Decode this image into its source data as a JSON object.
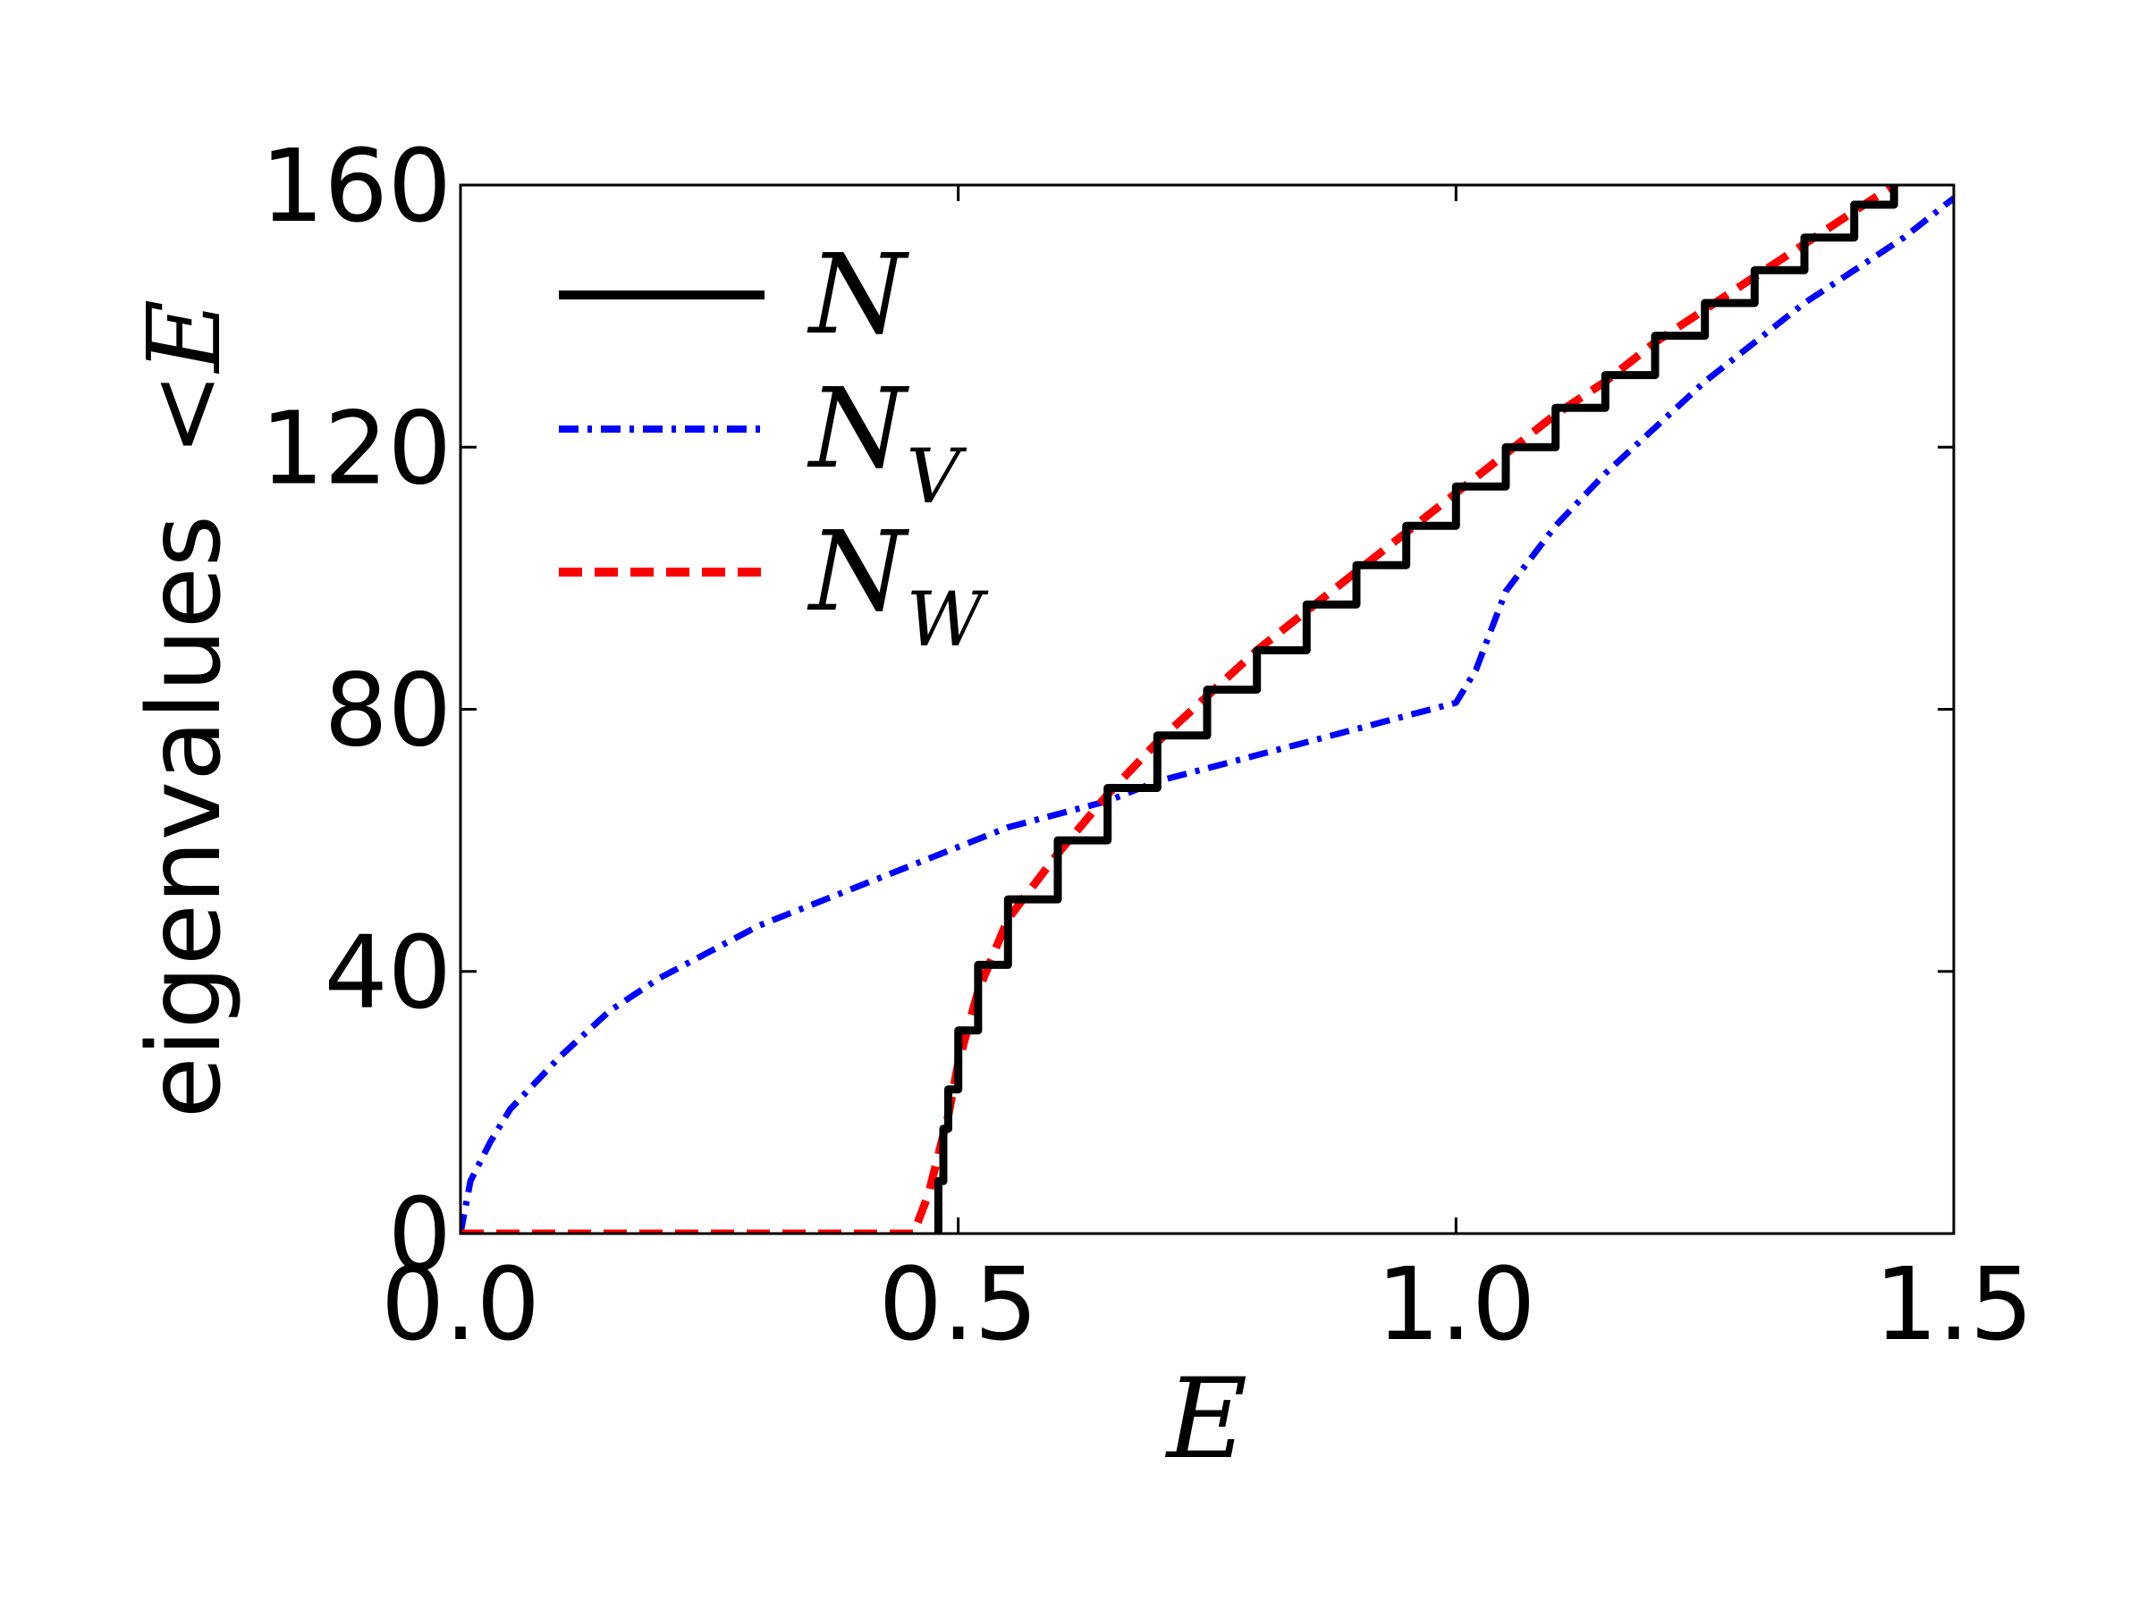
{
  "chart_data": {
    "type": "line",
    "xlabel": "E",
    "ylabel_prefix": "eigenvalues",
    "ylabel_math": "<E",
    "xlim": [
      0.0,
      1.5
    ],
    "ylim": [
      0,
      160
    ],
    "xticks": [
      0.0,
      0.5,
      1.0,
      1.5
    ],
    "xtick_labels": [
      "0.0",
      "0.5",
      "1.0",
      "1.5"
    ],
    "yticks": [
      0,
      40,
      80,
      120,
      160
    ],
    "ytick_labels": [
      "0",
      "40",
      "80",
      "120",
      "160"
    ],
    "grid": false,
    "legend_position": "top-left",
    "series": [
      {
        "name": "N",
        "legend_main": "N",
        "legend_sub": "",
        "color": "#000000",
        "style": "solid-staircase",
        "x": [
          0.478,
          0.48,
          0.485,
          0.49,
          0.5,
          0.52,
          0.55,
          0.6,
          0.65,
          0.7,
          0.75,
          0.8,
          0.85,
          0.9,
          0.95,
          1.0,
          1.05,
          1.1,
          1.15,
          1.2,
          1.25,
          1.3,
          1.35,
          1.4,
          1.44
        ],
        "y": [
          0,
          8,
          16,
          22,
          31,
          41,
          51,
          60,
          68,
          76,
          83,
          89,
          96,
          102,
          108,
          114,
          120,
          126,
          131,
          137,
          142,
          147,
          152,
          157,
          160
        ]
      },
      {
        "name": "N_V",
        "legend_main": "N",
        "legend_sub": "V",
        "color": "#0000ff",
        "style": "dashdot",
        "x": [
          0.0,
          0.01,
          0.03,
          0.05,
          0.1,
          0.15,
          0.2,
          0.25,
          0.3,
          0.35,
          0.4,
          0.45,
          0.5,
          0.55,
          0.6,
          0.65,
          0.7,
          0.75,
          0.8,
          0.85,
          0.9,
          0.95,
          1.0,
          1.02,
          1.05,
          1.1,
          1.15,
          1.2,
          1.25,
          1.3,
          1.35,
          1.4,
          1.45,
          1.5
        ],
        "y": [
          0,
          8,
          14,
          19,
          27,
          34,
          39,
          43,
          47,
          50,
          53,
          56,
          59,
          62,
          64,
          66,
          69,
          71,
          73,
          75,
          77,
          79,
          81,
          86,
          98,
          108,
          116,
          123,
          130,
          136,
          142,
          147,
          152,
          158
        ]
      },
      {
        "name": "N_W",
        "legend_main": "N",
        "legend_sub": "W",
        "color": "#ff0000",
        "style": "dashed",
        "x": [
          0.0,
          0.1,
          0.2,
          0.3,
          0.4,
          0.455,
          0.47,
          0.48,
          0.49,
          0.5,
          0.52,
          0.55,
          0.6,
          0.65,
          0.7,
          0.75,
          0.8,
          0.85,
          0.9,
          0.95,
          1.0,
          1.05,
          1.1,
          1.15,
          1.2,
          1.25,
          1.3,
          1.35,
          1.4,
          1.45
        ],
        "y": [
          0,
          0,
          0,
          0,
          0,
          0,
          6,
          12,
          18,
          26,
          37,
          48,
          58,
          67,
          75,
          82,
          89,
          95,
          101,
          107,
          113,
          119,
          125,
          130,
          136,
          141,
          146,
          151,
          156,
          161
        ]
      }
    ]
  }
}
